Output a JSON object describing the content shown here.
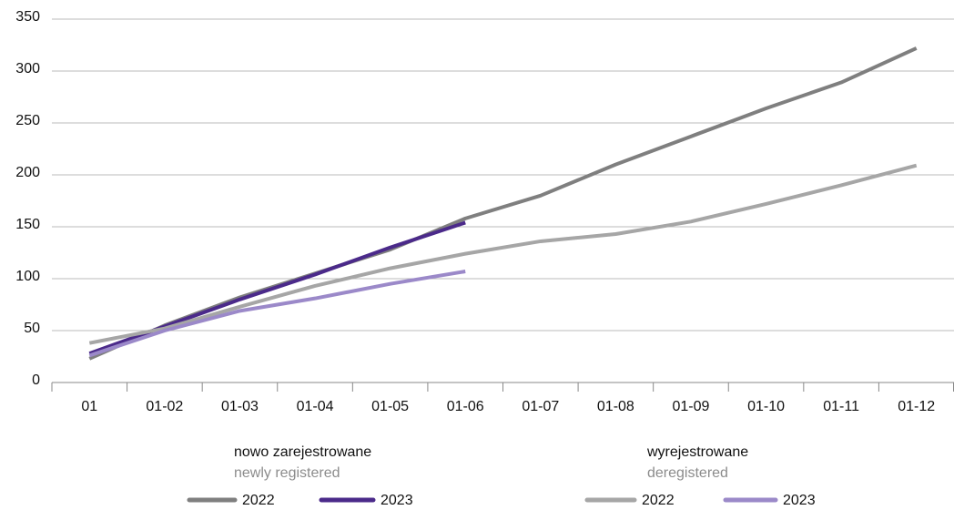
{
  "chart_data": {
    "type": "line",
    "categories": [
      "01",
      "01-02",
      "01-03",
      "01-04",
      "01-05",
      "01-06",
      "01-07",
      "01-08",
      "01-09",
      "01-10",
      "01-11",
      "01-12"
    ],
    "ylim": [
      0,
      350
    ],
    "yticks": [
      0,
      50,
      100,
      150,
      200,
      250,
      300,
      350
    ],
    "grid": true,
    "groups": [
      {
        "title": "nowo zarejestrowane",
        "subtitle": "newly registered",
        "series": [
          {
            "name": "2022",
            "color": "#7f7f7f",
            "values": [
              23,
              55,
              82,
              105,
              128,
              158,
              180,
              210,
              237,
              264,
              289,
              322
            ]
          },
          {
            "name": "2023",
            "color": "#4b2a8a",
            "values": [
              28,
              54,
              80,
              104,
              130,
              154,
              null,
              null,
              null,
              null,
              null,
              null
            ]
          }
        ]
      },
      {
        "title": "wyrejestrowane",
        "subtitle": "deregistered",
        "series": [
          {
            "name": "2022",
            "color": "#a6a6a6",
            "values": [
              38,
              52,
              73,
              93,
              110,
              124,
              136,
              143,
              155,
              172,
              190,
              209
            ]
          },
          {
            "name": "2023",
            "color": "#9b89c9",
            "values": [
              26,
              50,
              69,
              81,
              95,
              107,
              null,
              null,
              null,
              null,
              null,
              null
            ]
          }
        ]
      }
    ]
  }
}
